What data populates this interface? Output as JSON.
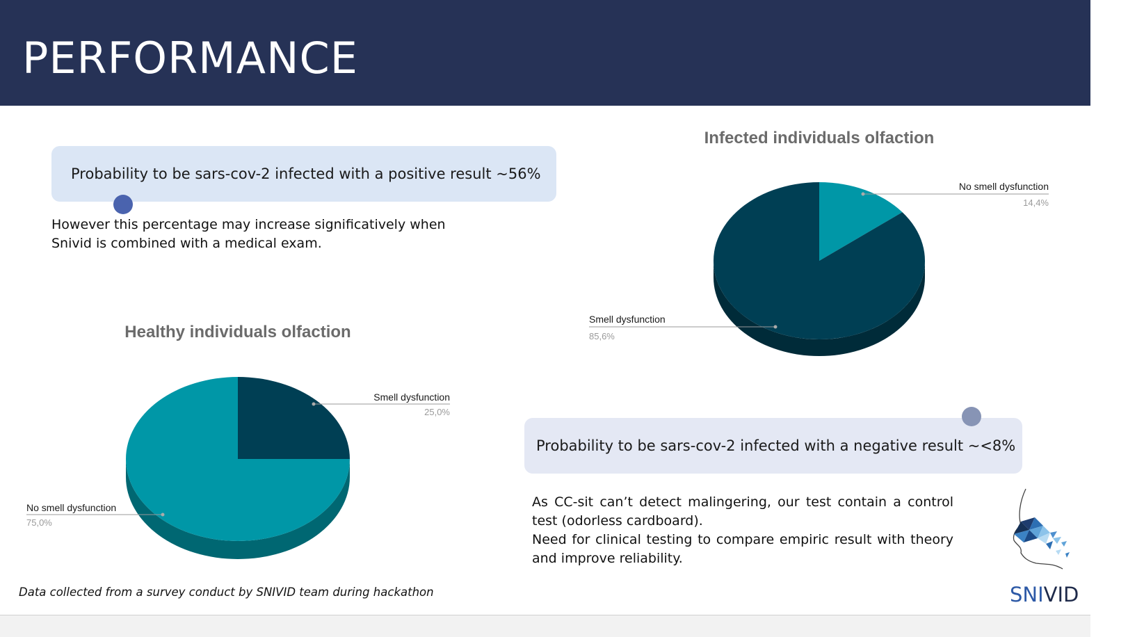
{
  "slide": {
    "title": "PERFORMANCE",
    "positive_callout": "Probability to be sars-cov-2 infected with a positive result ~56%",
    "positive_note_lines": [
      "However this percentage may increase significatively when",
      "Snivid is combined with a medical exam."
    ],
    "negative_callout": "Probability to be sars-cov-2 infected with a negative result ~<8%",
    "negative_note_lines": [
      "As CC-sit can’t detect malingering, our test contain a control test (odorless cardboard).",
      "Need for clinical testing to compare empiric result with theory and improve reliability."
    ],
    "footer_note": "Data collected from a survey conduct by SNIVID team during hackathon",
    "brand_part1": "SNI",
    "brand_part2": "VID"
  },
  "colors": {
    "header_bg": "#263256",
    "dark_slice": "#003f54",
    "teal_slice": "#0097a7",
    "callout_bg": "#dbe6f5"
  },
  "chart_data": [
    {
      "type": "pie",
      "title": "Infected individuals olfaction",
      "slices": [
        {
          "label": "No smell dysfunction",
          "value_label": "14,4%",
          "value": 14.4,
          "color": "#0097a7"
        },
        {
          "label": "Smell dysfunction",
          "value_label": "85,6%",
          "value": 85.6,
          "color": "#003f54"
        }
      ]
    },
    {
      "type": "pie",
      "title": "Healthy individuals olfaction",
      "slices": [
        {
          "label": "Smell dysfunction",
          "value_label": "25,0%",
          "value": 25.0,
          "color": "#003f54"
        },
        {
          "label": "No smell dysfunction",
          "value_label": "75,0%",
          "value": 75.0,
          "color": "#0097a7"
        }
      ]
    }
  ]
}
